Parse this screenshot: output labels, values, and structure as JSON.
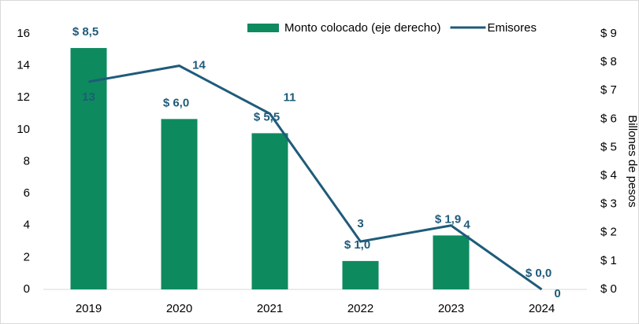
{
  "chart_data": {
    "type": "bar",
    "categories": [
      "2019",
      "2020",
      "2021",
      "2022",
      "2023",
      "2024"
    ],
    "series": [
      {
        "name": "Monto colocado (eje derecho)",
        "type": "bar",
        "axis": "y2",
        "color": "#0e8a5f",
        "values": [
          8.5,
          6.0,
          5.5,
          1.0,
          1.9,
          0.0
        ],
        "value_labels": [
          "$ 8,5",
          "$ 6,0",
          "$ 5,5",
          "$ 1,0",
          "$ 1,9",
          "$ 0,0"
        ]
      },
      {
        "name": "Emisores",
        "type": "line",
        "color": "#1f5b7a",
        "values": [
          13,
          14,
          11,
          3,
          4,
          0
        ]
      }
    ],
    "ylim": [
      0,
      16
    ],
    "yticks": [
      0,
      2,
      4,
      6,
      8,
      10,
      12,
      14,
      16
    ],
    "y2lim": [
      0,
      9
    ],
    "y2ticks": [
      {
        "value": 0,
        "label": "$ 0"
      },
      {
        "value": 1,
        "label": "$ 1"
      },
      {
        "value": 2,
        "label": "$ 2"
      },
      {
        "value": 3,
        "label": "$ 3"
      },
      {
        "value": 4,
        "label": "$ 4"
      },
      {
        "value": 5,
        "label": "$ 5"
      },
      {
        "value": 6,
        "label": "$ 6"
      },
      {
        "value": 7,
        "label": "$ 7"
      },
      {
        "value": 8,
        "label": "$ 8"
      },
      {
        "value": 9,
        "label": "$ 9"
      }
    ],
    "y2_label": "Billones de pesos",
    "legend": "top-right",
    "grid": false
  }
}
